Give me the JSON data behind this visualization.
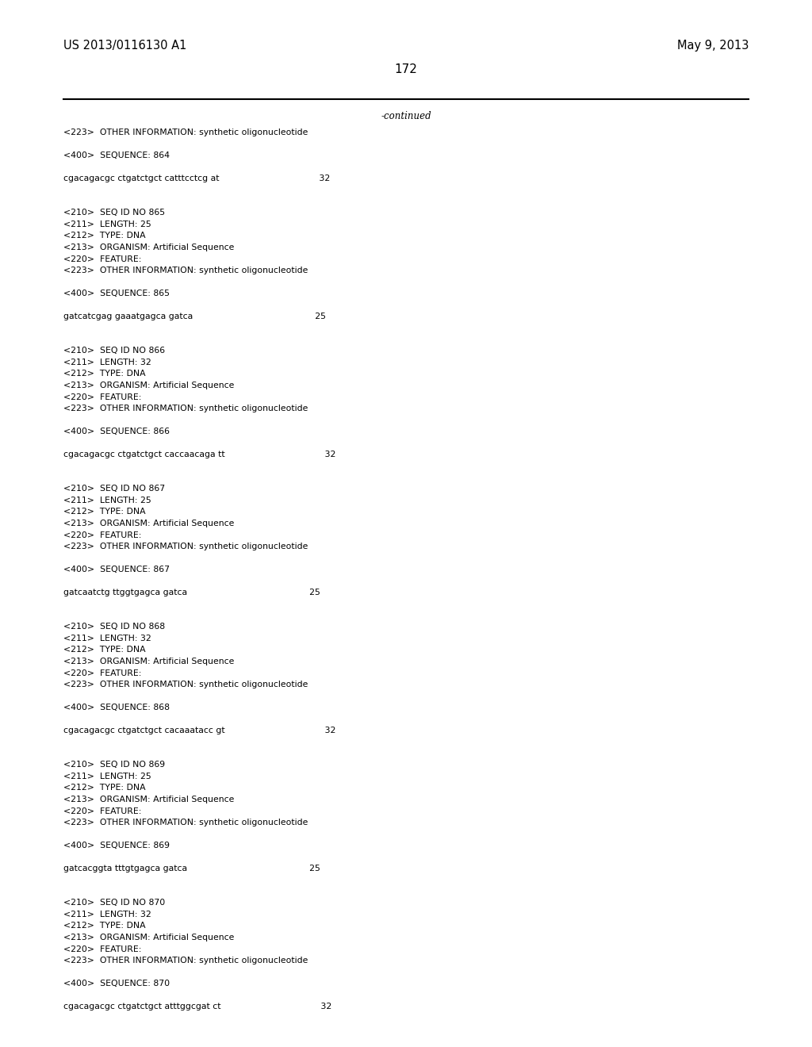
{
  "patent_number": "US 2013/0116130 A1",
  "date": "May 9, 2013",
  "page_number": "172",
  "continued_text": "-continued",
  "background_color": "#ffffff",
  "text_color": "#000000",
  "font_size_header": 10.5,
  "font_size_body": 8.5,
  "font_size_page": 11,
  "lines": [
    "<223>  OTHER INFORMATION: synthetic oligonucleotide",
    "",
    "<400>  SEQUENCE: 864",
    "",
    "cgacagacgc ctgatctgct catttcctcg at                                    32",
    "",
    "",
    "<210>  SEQ ID NO 865",
    "<211>  LENGTH: 25",
    "<212>  TYPE: DNA",
    "<213>  ORGANISM: Artificial Sequence",
    "<220>  FEATURE:",
    "<223>  OTHER INFORMATION: synthetic oligonucleotide",
    "",
    "<400>  SEQUENCE: 865",
    "",
    "gatcatcgag gaaatgagca gatca                                            25",
    "",
    "",
    "<210>  SEQ ID NO 866",
    "<211>  LENGTH: 32",
    "<212>  TYPE: DNA",
    "<213>  ORGANISM: Artificial Sequence",
    "<220>  FEATURE:",
    "<223>  OTHER INFORMATION: synthetic oligonucleotide",
    "",
    "<400>  SEQUENCE: 866",
    "",
    "cgacagacgc ctgatctgct caccaacaga tt                                    32",
    "",
    "",
    "<210>  SEQ ID NO 867",
    "<211>  LENGTH: 25",
    "<212>  TYPE: DNA",
    "<213>  ORGANISM: Artificial Sequence",
    "<220>  FEATURE:",
    "<223>  OTHER INFORMATION: synthetic oligonucleotide",
    "",
    "<400>  SEQUENCE: 867",
    "",
    "gatcaatctg ttggtgagca gatca                                            25",
    "",
    "",
    "<210>  SEQ ID NO 868",
    "<211>  LENGTH: 32",
    "<212>  TYPE: DNA",
    "<213>  ORGANISM: Artificial Sequence",
    "<220>  FEATURE:",
    "<223>  OTHER INFORMATION: synthetic oligonucleotide",
    "",
    "<400>  SEQUENCE: 868",
    "",
    "cgacagacgc ctgatctgct cacaaatacc gt                                    32",
    "",
    "",
    "<210>  SEQ ID NO 869",
    "<211>  LENGTH: 25",
    "<212>  TYPE: DNA",
    "<213>  ORGANISM: Artificial Sequence",
    "<220>  FEATURE:",
    "<223>  OTHER INFORMATION: synthetic oligonucleotide",
    "",
    "<400>  SEQUENCE: 869",
    "",
    "gatcacggta tttgtgagca gatca                                            25",
    "",
    "",
    "<210>  SEQ ID NO 870",
    "<211>  LENGTH: 32",
    "<212>  TYPE: DNA",
    "<213>  ORGANISM: Artificial Sequence",
    "<220>  FEATURE:",
    "<223>  OTHER INFORMATION: synthetic oligonucleotide",
    "",
    "<400>  SEQUENCE: 870",
    "",
    "cgacagacgc ctgatctgct atttggcgat ct                                    32"
  ]
}
